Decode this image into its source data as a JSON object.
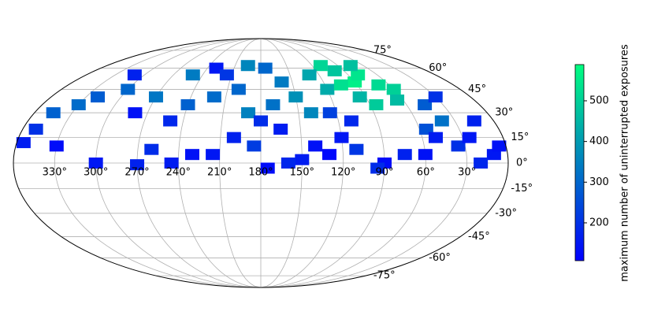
{
  "chart_data": {
    "type": "scatter",
    "projection": "mollweide",
    "colorbar_label": "maximum number of uninterrupted exposures",
    "colormap": [
      "#0000ff",
      "#00ff80"
    ],
    "clim": [
      107,
      589
    ],
    "cticks": [
      200,
      300,
      400,
      500
    ],
    "grid": true,
    "xticks": [
      {
        "value": 330,
        "label": "330°"
      },
      {
        "value": 300,
        "label": "300°"
      },
      {
        "value": 270,
        "label": "270°"
      },
      {
        "value": 240,
        "label": "240°"
      },
      {
        "value": 210,
        "label": "210°"
      },
      {
        "value": 180,
        "label": "180°"
      },
      {
        "value": 150,
        "label": "150°"
      },
      {
        "value": 120,
        "label": "120°"
      },
      {
        "value": 90,
        "label": "90°"
      },
      {
        "value": 60,
        "label": "60°"
      },
      {
        "value": 30,
        "label": "30°"
      }
    ],
    "yticks": [
      {
        "value": 75,
        "label": "75°"
      },
      {
        "value": 60,
        "label": "60°"
      },
      {
        "value": 45,
        "label": "45°"
      },
      {
        "value": 30,
        "label": "30°"
      },
      {
        "value": 15,
        "label": "15°"
      },
      {
        "value": 0,
        "label": "0°"
      },
      {
        "value": -15,
        "label": "-15°"
      },
      {
        "value": -30,
        "label": "-30°"
      },
      {
        "value": -45,
        "label": "-45°"
      },
      {
        "value": -60,
        "label": "-60°"
      },
      {
        "value": -75,
        "label": "-75°"
      }
    ],
    "x": [
      90,
      80,
      70,
      60,
      100,
      110,
      75,
      95,
      120,
      85,
      65,
      130,
      105,
      150,
      160,
      140,
      170,
      200,
      190,
      220,
      240,
      270,
      300,
      320,
      330,
      345,
      250,
      195,
      175,
      45,
      40,
      55,
      10,
      20,
      35,
      50,
      60,
      75,
      90,
      95,
      110,
      120,
      130,
      140,
      150,
      160,
      175,
      185,
      200,
      215,
      230,
      245,
      260,
      270,
      300,
      330,
      350,
      355,
      250,
      280,
      310,
      230,
      215,
      180,
      165,
      125,
      110,
      25,
      15,
      30,
      5
    ],
    "y": [
      50,
      55,
      48,
      45,
      58,
      62,
      62,
      40,
      45,
      35,
      38,
      55,
      48,
      40,
      50,
      30,
      35,
      45,
      30,
      40,
      35,
      40,
      45,
      40,
      35,
      30,
      55,
      62,
      60,
      35,
      25,
      20,
      5,
      0,
      10,
      15,
      5,
      5,
      0,
      -3,
      8,
      15,
      5,
      10,
      2,
      0,
      -3,
      10,
      15,
      5,
      5,
      0,
      8,
      -1,
      0,
      10,
      20,
      12,
      25,
      30,
      55,
      60,
      55,
      25,
      20,
      30,
      25,
      15,
      25,
      40,
      10
    ],
    "values": [
      560,
      540,
      520,
      500,
      480,
      510,
      470,
      450,
      430,
      490,
      460,
      420,
      530,
      380,
      340,
      360,
      320,
      300,
      350,
      310,
      290,
      330,
      300,
      280,
      310,
      290,
      340,
      360,
      300,
      280,
      320,
      260,
      150,
      180,
      200,
      160,
      140,
      170,
      130,
      190,
      210,
      150,
      120,
      140,
      160,
      180,
      130,
      220,
      170,
      150,
      140,
      160,
      190,
      170,
      150,
      130,
      200,
      160,
      180,
      140,
      170,
      150,
      210,
      190,
      160,
      230,
      180,
      150,
      170,
      200,
      140
    ]
  }
}
